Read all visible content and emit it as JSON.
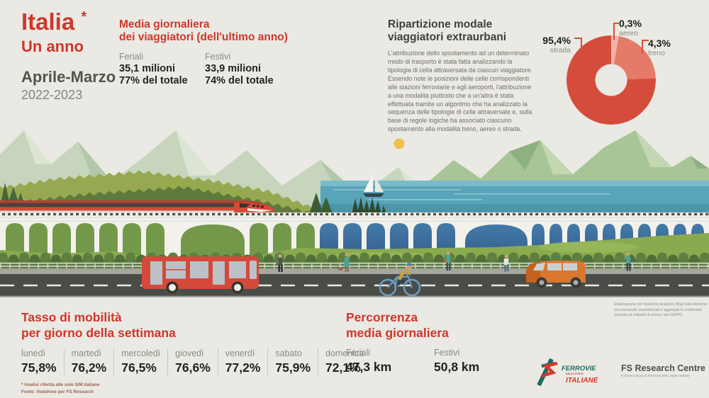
{
  "page": {
    "background": "#eae9e3",
    "accent_red": "#cf372b"
  },
  "header": {
    "country": "Italia",
    "asterisk": "*",
    "period_label": "Un anno",
    "months": "Aprile-Marzo",
    "years": "2022-2023"
  },
  "media": {
    "title_line1": "Media giornaliera",
    "title_line2": "dei viaggiatori (dell'ultimo anno)",
    "cols": [
      {
        "label": "Feriali",
        "value": "35,1 milioni",
        "share": "77% del totale"
      },
      {
        "label": "Festivi",
        "value": "33,9 milioni",
        "share": "74% del totale"
      }
    ]
  },
  "ripartizione": {
    "title_line1": "Ripartizione modale",
    "title_line2": "viaggiatori extraurbani",
    "body": "L'attribuzione dello spostamento ad un determinato modo di trasporto è stata fatta analizzando la tipologia di cella attraversata da ciascun viaggiatore. Essendo note le posizioni delle celle corrispondenti alle stazioni ferroviarie e agli aeroporti, l'attribuzione a una modalità piuttosto che a un'altra è stata effettuata tramite un algoritmo che ha analizzato la sequenza delle tipologie di celle attraversate e, sulla base di regole logiche ha associato ciascuno spostamento alla modalità treno, aereo o strada."
  },
  "chart_data": {
    "type": "pie",
    "donut": true,
    "title": "Ripartizione modale viaggiatori extraurbani",
    "legend_position": "around",
    "slices": [
      {
        "label": "strada",
        "value": 95.4,
        "value_label": "95,4%",
        "color": "#d54c3a"
      },
      {
        "label": "aereo",
        "value": 0.3,
        "value_label": "0,3%",
        "color": "#efb3a8"
      },
      {
        "label": "treno",
        "value": 4.3,
        "value_label": "4,3%",
        "color": "#e57a69"
      }
    ]
  },
  "mobility": {
    "title_line1": "Tasso di mobilità",
    "title_line2": "per giorno della settimana",
    "days": [
      {
        "label": "lunedì",
        "value": "75,8%"
      },
      {
        "label": "martedì",
        "value": "76,2%"
      },
      {
        "label": "mercoledì",
        "value": "76,5%"
      },
      {
        "label": "giovedì",
        "value": "76,6%"
      },
      {
        "label": "venerdì",
        "value": "77,2%"
      },
      {
        "label": "sabato",
        "value": "75,9%"
      },
      {
        "label": "domenica",
        "value": "72,1%"
      }
    ]
  },
  "percorrenza": {
    "title_line1": "Percorrenza",
    "title_line2": "media giornaliera",
    "cols": [
      {
        "label": "Feriali",
        "value": "47,3 km"
      },
      {
        "label": "Festivi",
        "value": "50,8 km"
      }
    ]
  },
  "footnotes": [
    "* Analisi riferita alle sole SIM italiane",
    "Fonte: Vodafone per FS Research"
  ],
  "disclaimer": "Elaborazione dei Vodafone Analytics (Big Data telefonici non personali, anonimizzati e aggregati in conformità assoluta ai requisiti di privacy del GDPR).",
  "branding": {
    "ferrovie_word": "FERROVIE",
    "dello_stato": "DELLO STATO",
    "italiane": "ITALIANE",
    "research_title": "FS Research Centre",
    "research_subtitle": "Il Centro Studi di Ferrovie dello Stato Italiane"
  }
}
